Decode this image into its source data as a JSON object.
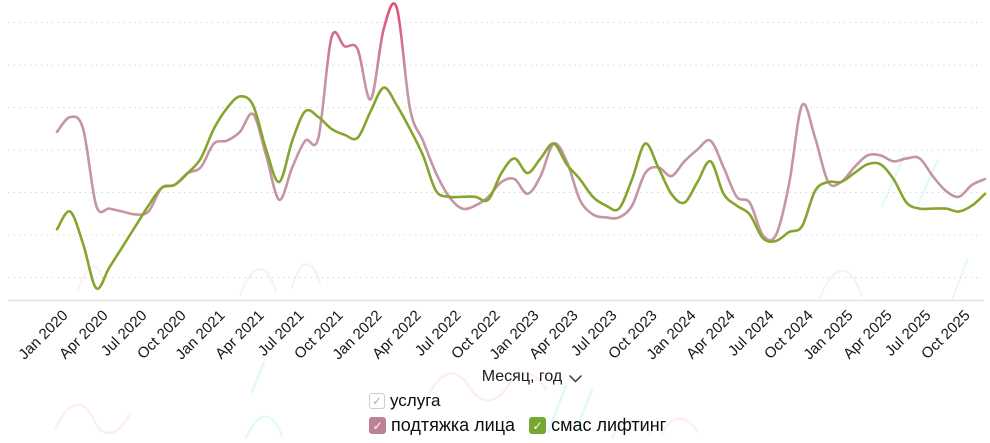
{
  "chart": {
    "x_axis_label": "Месяц, год"
  },
  "icons": {
    "check": "✓"
  },
  "chart_data": {
    "type": "line",
    "title": "",
    "xlabel": "Месяц, год",
    "ylabel": "",
    "ylim": [
      0,
      100
    ],
    "grid": "horizontal-dotted",
    "legend_position": "bottom",
    "tick_every": 3,
    "x": [
      "Jan 2020",
      "Feb 2020",
      "Mar 2020",
      "Apr 2020",
      "May 2020",
      "Jun 2020",
      "Jul 2020",
      "Aug 2020",
      "Sep 2020",
      "Oct 2020",
      "Nov 2020",
      "Dec 2020",
      "Jan 2021",
      "Feb 2021",
      "Mar 2021",
      "Apr 2021",
      "May 2021",
      "Jun 2021",
      "Jul 2021",
      "Aug 2021",
      "Sep 2021",
      "Oct 2021",
      "Nov 2021",
      "Dec 2021",
      "Jan 2022",
      "Feb 2022",
      "Mar 2022",
      "Apr 2022",
      "May 2022",
      "Jun 2022",
      "Jul 2022",
      "Aug 2022",
      "Sep 2022",
      "Oct 2022",
      "Nov 2022",
      "Dec 2022",
      "Jan 2023",
      "Feb 2023",
      "Mar 2023",
      "Apr 2023",
      "May 2023",
      "Jun 2023",
      "Jul 2023",
      "Aug 2023",
      "Sep 2023",
      "Oct 2023",
      "Nov 2023",
      "Dec 2023",
      "Jan 2024",
      "Feb 2024",
      "Mar 2024",
      "Apr 2024",
      "May 2024",
      "Jun 2024",
      "Jul 2024",
      "Aug 2024",
      "Sep 2024",
      "Oct 2024",
      "Nov 2024",
      "Dec 2024",
      "Jan 2025",
      "Feb 2025",
      "Mar 2025",
      "Apr 2025",
      "May 2025",
      "Jun 2025",
      "Jul 2025",
      "Aug 2025",
      "Sep 2025",
      "Oct 2025",
      "Nov 2025",
      "Dec 2025"
    ],
    "series": [
      {
        "name": "подтяжка лица",
        "color": "#c495a2",
        "peak_color": "#e7466f",
        "values": [
          57,
          62,
          58,
          32,
          31,
          30,
          29,
          30,
          38,
          39,
          43,
          45,
          53,
          54,
          57,
          63,
          49,
          34,
          45,
          54,
          55,
          89,
          86,
          85,
          68,
          92,
          99,
          65,
          54,
          43,
          35,
          31,
          32,
          35,
          40,
          41,
          36,
          42,
          53,
          47,
          34,
          29,
          28,
          28,
          32,
          43,
          45,
          42,
          47,
          51,
          54,
          45,
          35,
          33,
          22,
          22,
          39,
          66,
          55,
          40,
          40,
          45,
          49,
          49,
          47,
          48,
          48,
          42,
          37,
          35,
          39,
          41
        ]
      },
      {
        "name": "смас лифтинг",
        "color": "#86a52e",
        "values": [
          24,
          30,
          19,
          4,
          11,
          18,
          25,
          32,
          38,
          39,
          43,
          48,
          58,
          65,
          69,
          66,
          51,
          40,
          54,
          64,
          62,
          58,
          56,
          55,
          64,
          72,
          66,
          58,
          49,
          37,
          35,
          35,
          35,
          34,
          43,
          48,
          43,
          48,
          53,
          46,
          41,
          35,
          32,
          31,
          41,
          53,
          45,
          36,
          33,
          40,
          47,
          36,
          32,
          29,
          21,
          20,
          23,
          25,
          37,
          40,
          40,
          43,
          46,
          46,
          41,
          33,
          31,
          31,
          31,
          30,
          32,
          36
        ]
      }
    ]
  },
  "legend": {
    "filter_label": "услуга",
    "filter_checked": true,
    "items": [
      {
        "label": "подтяжка лица",
        "color": "#bd8296",
        "checked": true
      },
      {
        "label": "смас лифтинг",
        "color": "#76a82f",
        "checked": true
      }
    ]
  }
}
